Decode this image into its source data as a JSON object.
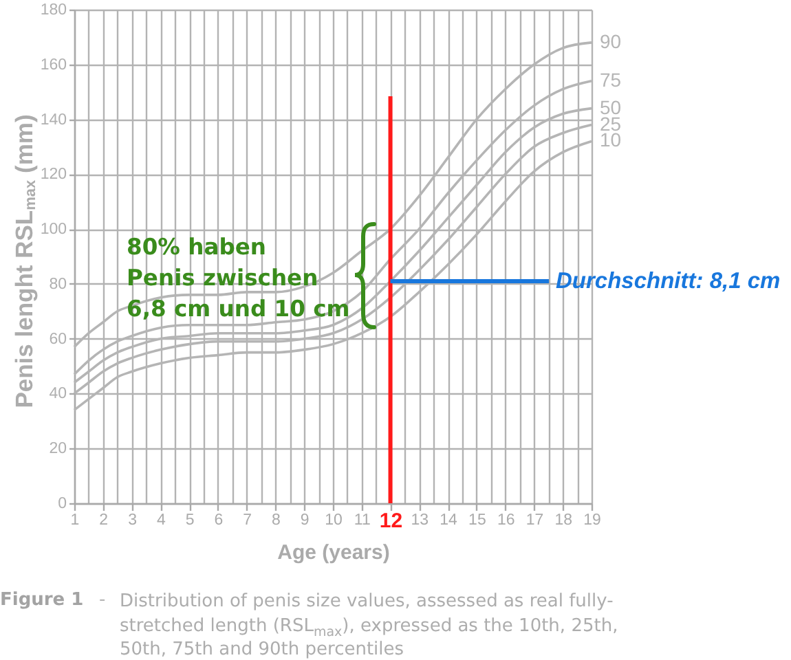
{
  "chart_data": {
    "type": "line",
    "xlabel": "Age (years)",
    "ylabel": "Penis lenght RSL$_{max}$ (mm)",
    "x": [
      1,
      1.5,
      2,
      2.5,
      3,
      4,
      5,
      6,
      7,
      8,
      9,
      10,
      11,
      12,
      13,
      14,
      15,
      16,
      17,
      18,
      19
    ],
    "series": [
      {
        "name": "90",
        "color": "#b5b5b5",
        "values": [
          57,
          62,
          66,
          70,
          72,
          75,
          76,
          76,
          77,
          77,
          79,
          84,
          92,
          100,
          112,
          126,
          140,
          151,
          160,
          166,
          168
        ]
      },
      {
        "name": "75",
        "color": "#b5b5b5",
        "values": [
          47,
          52,
          56,
          59,
          61,
          64,
          65,
          65,
          65,
          66,
          67,
          70,
          77,
          89,
          100,
          113,
          125,
          136,
          145,
          151,
          154
        ]
      },
      {
        "name": "50",
        "color": "#b5b5b5",
        "values": [
          44,
          48,
          52,
          55,
          57,
          60,
          61,
          62,
          62,
          62,
          63,
          65,
          71,
          81,
          92,
          104,
          116,
          128,
          137,
          142,
          144
        ]
      },
      {
        "name": "25",
        "color": "#b5b5b5",
        "values": [
          40,
          44,
          48,
          51,
          53,
          56,
          58,
          59,
          59,
          59,
          60,
          62,
          67,
          75,
          85,
          96,
          108,
          120,
          130,
          135,
          138
        ]
      },
      {
        "name": "10",
        "color": "#b5b5b5",
        "values": [
          34,
          38,
          42,
          46,
          48,
          51,
          53,
          54,
          55,
          55,
          56,
          58,
          62,
          68,
          77,
          87,
          98,
          110,
          121,
          128,
          132
        ]
      }
    ],
    "ref_lines": [
      {
        "axis": "x",
        "value": 12,
        "color": "#ff1a1a"
      }
    ],
    "xlim": [
      1,
      19
    ],
    "xticks": [
      1,
      {
        "value": 1.5,
        "label": null
      },
      2,
      {
        "value": 2.5,
        "label": null
      },
      3,
      {
        "value": 3.5,
        "label": null
      },
      4,
      {
        "value": 4.5,
        "label": null
      },
      5,
      {
        "value": 5.5,
        "label": null
      },
      6,
      {
        "value": 6.5,
        "label": null
      },
      7,
      {
        "value": 7.5,
        "label": null
      },
      8,
      {
        "value": 8.5,
        "label": null
      },
      9,
      {
        "value": 9.5,
        "label": null
      },
      10,
      {
        "value": 10.5,
        "label": null
      },
      11,
      {
        "value": 11.5,
        "label": null
      },
      12,
      {
        "value": 12.5,
        "label": null
      },
      13,
      {
        "value": 13.5,
        "label": null
      },
      14,
      {
        "value": 14.5,
        "label": null
      },
      15,
      {
        "value": 15.5,
        "label": null
      },
      16,
      {
        "value": 16.5,
        "label": null
      },
      17,
      {
        "value": 17.5,
        "label": null
      },
      18,
      {
        "value": 18.5,
        "label": null
      },
      19
    ],
    "ylim": [
      0,
      180
    ],
    "yticks": [
      0,
      20,
      40,
      60,
      80,
      100,
      120,
      140,
      160,
      180
    ],
    "grid": true,
    "annotations": [
      "80% haben\nPenis zwischen\n6,8 cm und 10 cm",
      {
        "text": "Durchschnitt: 8,1 cm",
        "x": 12,
        "y": 81
      },
      "Figure 1 - Distribution of penis size values, assessed as real fully-stretched length (RSL$_{max}$), expressed as the 10th, 25th, 50th, 75th and 90th percentiles"
    ]
  }
}
